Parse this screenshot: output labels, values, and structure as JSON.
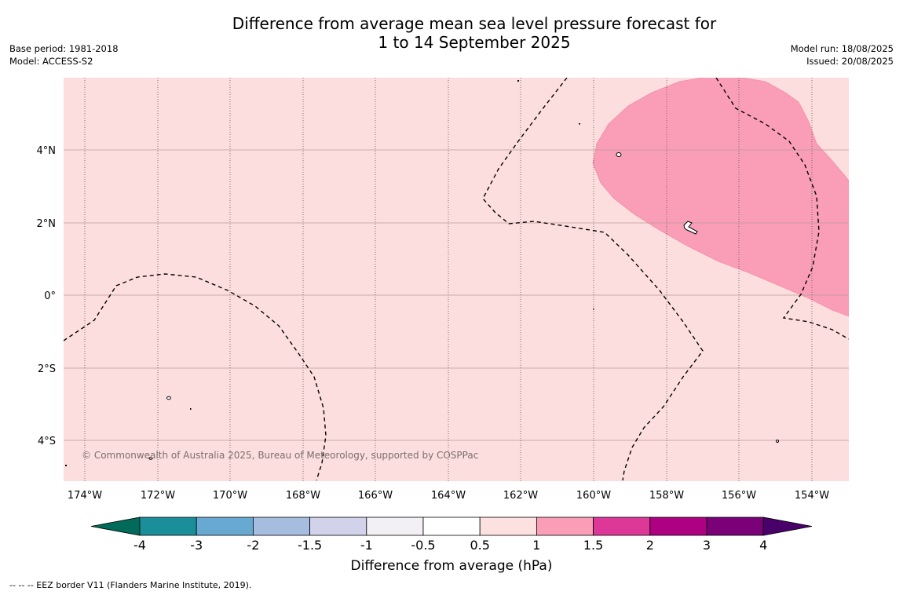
{
  "title_line1": "Difference from average mean sea level pressure forecast for",
  "title_line2": "1 to 14 September 2025",
  "meta": {
    "base_period": "Base period: 1981-2018",
    "model": "Model: ACCESS-S2",
    "model_run": "Model run: 18/08/2025",
    "issued": "Issued: 20/08/2025"
  },
  "map": {
    "lon_ticks": [
      "174°W",
      "172°W",
      "170°W",
      "168°W",
      "166°W",
      "164°W",
      "162°W",
      "160°W",
      "158°W",
      "156°W",
      "154°W"
    ],
    "lat_ticks": [
      "4°N",
      "2°N",
      "0°",
      "2°S",
      "4°S"
    ],
    "copyright": "© Commonwealth of Australia 2025, Bureau of Meteorology, supported by COSPPac",
    "background_fill": "#fddede",
    "anomaly_fill": "#f99eb6"
  },
  "colorbar": {
    "label": "Difference from average (hPa)",
    "ticks": [
      "-4",
      "-3",
      "-2",
      "-1.5",
      "-1",
      "-0.5",
      "0.5",
      "1",
      "1.5",
      "2",
      "3",
      "4"
    ],
    "colors": [
      "#006b5a",
      "#1b8f99",
      "#67a9d0",
      "#a6bde0",
      "#d2d3ea",
      "#f2f0f4",
      "#ffffff",
      "#fde0e0",
      "#f99eb6",
      "#dd3798",
      "#ad0181",
      "#7a0177",
      "#49006a"
    ]
  },
  "footnote": "--  --  -- EEZ border V11 (Flanders Marine Institute, 2019)."
}
